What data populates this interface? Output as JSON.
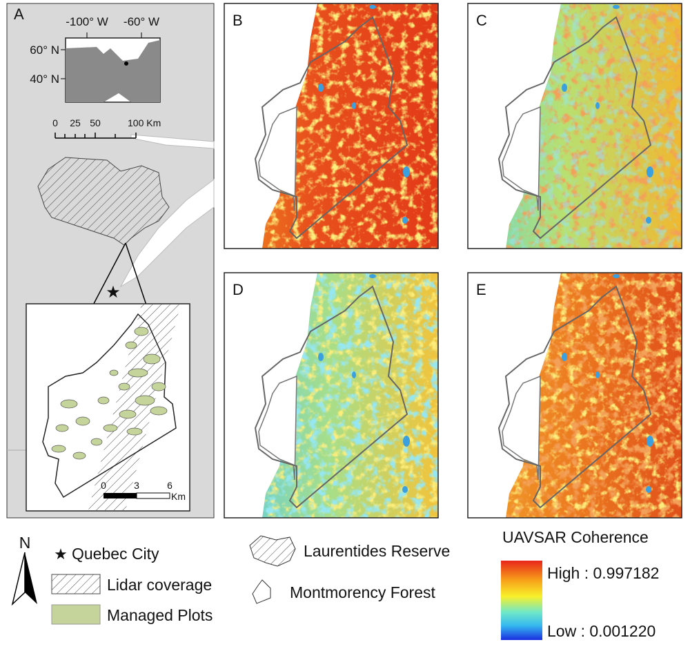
{
  "panel_labels": [
    "A",
    "B",
    "C",
    "D",
    "E"
  ],
  "inset_map": {
    "lon_labels": [
      "-100° W",
      "-60° W"
    ],
    "lat_labels": [
      "60° N",
      "40° N"
    ]
  },
  "scale_bar": {
    "ticks": [
      "0",
      "25",
      "50",
      "100 Km"
    ]
  },
  "detail_scale_bar": {
    "ticks": [
      "0",
      "3",
      "6"
    ],
    "unit": "Km"
  },
  "legend": {
    "north": "N",
    "items": [
      "Quebec City",
      "Lidar coverage",
      "Managed Plots",
      "Laurentides Reserve",
      "Montmorency Forest"
    ],
    "colorbar": {
      "title": "UAVSAR Coherence",
      "high": "High : 0.997182",
      "low": "Low : 0.001220"
    }
  }
}
